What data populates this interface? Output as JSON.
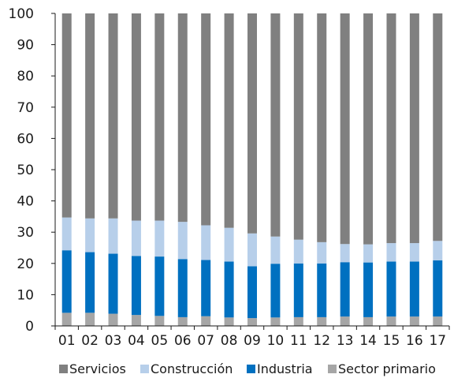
{
  "chart_data": {
    "type": "bar",
    "stacked": true,
    "percent": true,
    "categories": [
      "01",
      "02",
      "03",
      "04",
      "05",
      "06",
      "07",
      "08",
      "09",
      "10",
      "11",
      "12",
      "13",
      "14",
      "15",
      "16",
      "17"
    ],
    "series": [
      {
        "name": "Sector primario",
        "color": "#a6a6a6",
        "values": [
          4.2,
          4.2,
          3.9,
          3.5,
          3.2,
          2.8,
          3.1,
          2.7,
          2.5,
          2.7,
          2.8,
          2.8,
          3.0,
          2.8,
          3.0,
          3.0,
          3.0
        ]
      },
      {
        "name": "Industria",
        "color": "#0070c0",
        "values": [
          20.0,
          19.4,
          19.2,
          18.9,
          19.0,
          18.6,
          18.0,
          17.9,
          16.6,
          17.2,
          17.2,
          17.2,
          17.4,
          17.5,
          17.6,
          17.6,
          18.0
        ]
      },
      {
        "name": "Construcción",
        "color": "#b7cfea",
        "values": [
          10.5,
          10.8,
          11.3,
          11.3,
          11.5,
          11.9,
          11.1,
          10.8,
          10.5,
          8.7,
          7.6,
          6.8,
          5.8,
          5.8,
          5.9,
          5.9,
          6.2
        ]
      },
      {
        "name": "Servicios",
        "color": "#808080",
        "values": [
          65.3,
          65.6,
          65.6,
          66.3,
          66.3,
          66.7,
          67.8,
          68.6,
          70.4,
          71.4,
          72.4,
          73.2,
          73.8,
          73.9,
          73.5,
          73.5,
          72.8
        ]
      }
    ],
    "ylim": [
      0,
      100
    ],
    "yticks": [
      "0",
      "10",
      "20",
      "30",
      "40",
      "50",
      "60",
      "70",
      "80",
      "90",
      "100"
    ],
    "legend_order": [
      "Servicios",
      "Construcción",
      "Industria",
      "Sector primario"
    ],
    "legend_position": "bottom",
    "grid": false
  }
}
